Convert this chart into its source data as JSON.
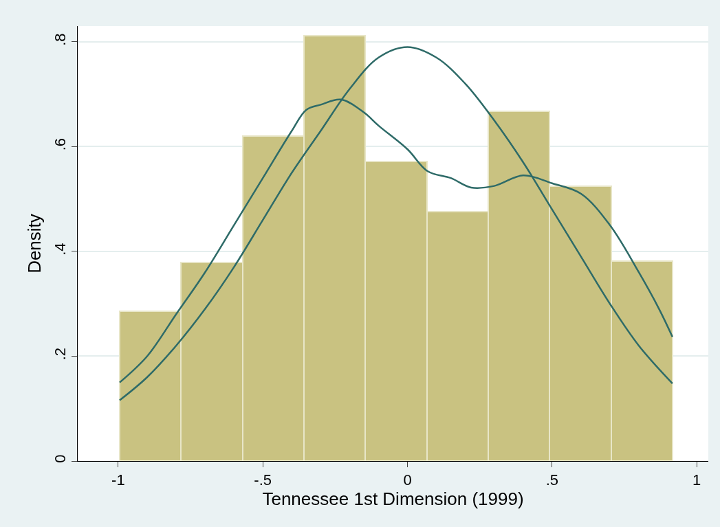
{
  "chart_data": {
    "type": "histogram",
    "xlabel": "Tennessee 1st Dimension (1999)",
    "ylabel": "Density",
    "bins": [
      -0.995,
      -0.783,
      -0.57,
      -0.358,
      -0.146,
      0.067,
      0.279,
      0.491,
      0.704,
      0.916
    ],
    "values": [
      0.286,
      0.379,
      0.62,
      0.811,
      0.572,
      0.476,
      0.668,
      0.524,
      0.382
    ],
    "color": "#c9c281",
    "series": [
      {
        "type": "line",
        "color": "#2e6b68",
        "x": [
          -0.995,
          -0.9,
          -0.8,
          -0.7,
          -0.6,
          -0.5,
          -0.4,
          -0.3,
          -0.2,
          -0.1,
          0,
          0.1,
          0.2,
          0.3,
          0.4,
          0.5,
          0.6,
          0.7,
          0.8,
          0.916
        ],
        "values": [
          0.116,
          0.16,
          0.22,
          0.29,
          0.37,
          0.46,
          0.55,
          0.63,
          0.71,
          0.77,
          0.79,
          0.77,
          0.72,
          0.65,
          0.57,
          0.48,
          0.39,
          0.3,
          0.22,
          0.148
        ]
      },
      {
        "type": "line",
        "color": "#2e6b68",
        "x": [
          -0.995,
          -0.9,
          -0.8,
          -0.7,
          -0.6,
          -0.5,
          -0.4,
          -0.35,
          -0.3,
          -0.23,
          -0.15,
          -0.1,
          0,
          0.07,
          0.15,
          0.22,
          0.3,
          0.4,
          0.5,
          0.6,
          0.7,
          0.8,
          0.87,
          0.916
        ],
        "values": [
          0.15,
          0.2,
          0.28,
          0.36,
          0.45,
          0.54,
          0.63,
          0.67,
          0.68,
          0.69,
          0.665,
          0.64,
          0.595,
          0.553,
          0.54,
          0.522,
          0.525,
          0.545,
          0.53,
          0.51,
          0.45,
          0.36,
          0.29,
          0.237
        ]
      }
    ],
    "xlim": [
      -1.14,
      1.04
    ],
    "ylim": [
      0,
      0.83
    ],
    "xticks": [
      {
        "value": -1,
        "label": "-1"
      },
      {
        "value": -0.5,
        "label": "-.5"
      },
      0,
      {
        "value": 0.5,
        "label": ".5"
      },
      1
    ],
    "yticks": [
      0,
      {
        "value": 0.2,
        "label": ".2"
      },
      {
        "value": 0.4,
        "label": ".4"
      },
      {
        "value": 0.6,
        "label": ".6"
      },
      {
        "value": 0.8,
        "label": ".8"
      }
    ],
    "grid": "y"
  }
}
